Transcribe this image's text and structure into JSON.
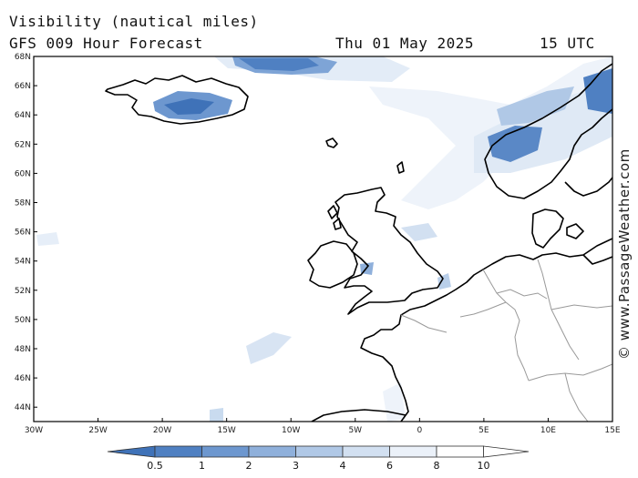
{
  "header": {
    "title": "Visibility (nautical miles)",
    "model": "GFS 009 Hour Forecast",
    "date": "Thu 01 May 2025",
    "time": "15 UTC"
  },
  "map": {
    "lat_labels": [
      "68N",
      "66N",
      "64N",
      "62N",
      "60N",
      "58N",
      "56N",
      "54N",
      "52N",
      "50N",
      "48N",
      "46N",
      "44N"
    ],
    "lon_labels": [
      "30W",
      "25W",
      "20W",
      "15W",
      "10W",
      "5W",
      "0",
      "5E",
      "10E",
      "15E"
    ]
  },
  "legend": {
    "labels": [
      "0.5",
      "1",
      "2",
      "3",
      "4",
      "6",
      "8",
      "10"
    ],
    "colors": [
      "#3f72b8",
      "#4f80c2",
      "#6d97cf",
      "#8fb0db",
      "#b0c8e6",
      "#d2e0f1",
      "#ebf1f9",
      "#ffffff"
    ]
  },
  "credit": "© www.PassageWeather.com",
  "colors": {
    "coast": "#000000",
    "border": "#999999",
    "frame": "#000000"
  }
}
